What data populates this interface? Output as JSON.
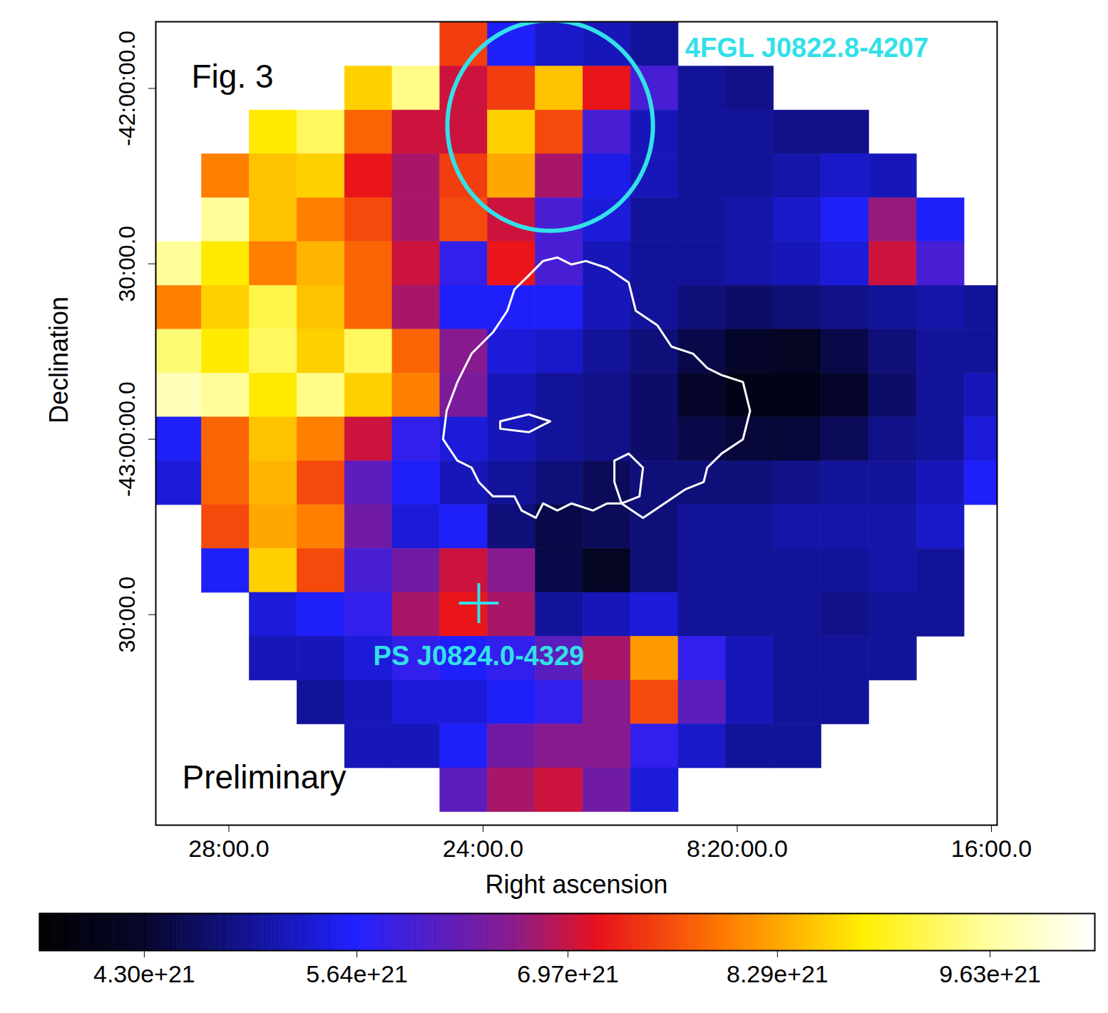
{
  "chart_data": {
    "type": "heatmap",
    "x_label": "Right ascension",
    "y_label": "Declination",
    "annotations": [
      "Fig. 3",
      "Preliminary"
    ],
    "xlim": [
      29.15,
      15.91
    ],
    "ylim": [
      -44.1,
      -41.81
    ],
    "xticks": [
      {
        "value": 28,
        "label": "28:00.0"
      },
      {
        "value": 24,
        "label": "24:00.0"
      },
      {
        "value": 20,
        "label": "8:20:00.0"
      },
      {
        "value": 16,
        "label": "16:00.0"
      }
    ],
    "yticks": [
      {
        "value": -42,
        "label": "-42:00:00.0"
      },
      {
        "value": -42.5,
        "label": "30:00.0"
      },
      {
        "value": -43,
        "label": "-43:00:00.0"
      },
      {
        "value": -43.5,
        "label": "30:00.0"
      }
    ],
    "x": [
      28.8,
      28.05,
      27.3,
      26.55,
      25.8,
      25.05,
      24.3,
      23.55,
      22.8,
      22.05,
      21.3,
      20.55,
      19.8,
      19.05,
      18.3,
      17.55,
      16.8,
      16.05
    ],
    "y": [
      -41.875,
      -42.0,
      -42.125,
      -42.25,
      -42.375,
      -42.5,
      -42.625,
      -42.75,
      -42.875,
      -43.0,
      -43.125,
      -43.25,
      -43.375,
      -43.5,
      -43.625,
      -43.75,
      -43.875,
      -44.0
    ],
    "values": [
      [
        null,
        null,
        null,
        null,
        null,
        null,
        7.5e+21,
        5.6e+21,
        5.3e+21,
        5.2e+21,
        5e+21,
        null,
        null,
        null,
        null,
        null,
        null,
        null
      ],
      [
        null,
        null,
        null,
        null,
        8.6e+21,
        9.5e+21,
        7e+21,
        7.5e+21,
        8.5e+21,
        7.2e+21,
        6e+21,
        5e+21,
        4.9e+21,
        null,
        null,
        null,
        null,
        null
      ],
      [
        null,
        null,
        8.8e+21,
        9.3e+21,
        7.8e+21,
        7e+21,
        7e+21,
        8.6e+21,
        7.6e+21,
        6e+21,
        5.2e+21,
        5e+21,
        5e+21,
        4.9e+21,
        4.9e+21,
        null,
        null,
        null
      ],
      [
        null,
        8e+21,
        8.5e+21,
        8.6e+21,
        7.2e+21,
        6.8e+21,
        7.5e+21,
        8.3e+21,
        6.8e+21,
        5.5e+21,
        5.2e+21,
        5e+21,
        5e+21,
        5.1e+21,
        5.3e+21,
        5.2e+21,
        null,
        null
      ],
      [
        null,
        9.6e+21,
        8.5e+21,
        8e+21,
        7.6e+21,
        6.8e+21,
        7.6e+21,
        7e+21,
        6e+21,
        5.4e+21,
        5e+21,
        5e+21,
        5.1e+21,
        5.3e+21,
        5.6e+21,
        6.7e+21,
        5.6e+21,
        null
      ],
      [
        9.6e+21,
        8.8e+21,
        8e+21,
        8.4e+21,
        7.8e+21,
        7e+21,
        5.8e+21,
        7.2e+21,
        6e+21,
        5.2e+21,
        5e+21,
        5e+21,
        5.1e+21,
        5.2e+21,
        5.4e+21,
        7e+21,
        6e+21,
        null
      ],
      [
        8e+21,
        8.6e+21,
        9.2e+21,
        8.5e+21,
        7.8e+21,
        6.8e+21,
        5.6e+21,
        5.6e+21,
        5.6e+21,
        5.2e+21,
        5e+21,
        4.8e+21,
        4.7e+21,
        4.8e+21,
        4.9e+21,
        5e+21,
        5.1e+21,
        5e+21
      ],
      [
        9.4e+21,
        8.8e+21,
        9.3e+21,
        8.6e+21,
        9.3e+21,
        7.8e+21,
        6.6e+21,
        5.4e+21,
        5.3e+21,
        5e+21,
        4.8e+21,
        4.5e+21,
        4.3e+21,
        4.2e+21,
        4.5e+21,
        4.8e+21,
        5e+21,
        5e+21
      ],
      [
        9.8e+21,
        9.6e+21,
        8.8e+21,
        9.5e+21,
        8.6e+21,
        8e+21,
        6.5e+21,
        5.2e+21,
        5e+21,
        4.9e+21,
        4.7e+21,
        4.3e+21,
        4e+21,
        4e+21,
        4.3e+21,
        4.7e+21,
        5e+21,
        5.2e+21
      ],
      [
        5.6e+21,
        7.8e+21,
        8.5e+21,
        8e+21,
        7e+21,
        5.8e+21,
        5.4e+21,
        5.2e+21,
        5e+21,
        4.9e+21,
        4.7e+21,
        4.5e+21,
        4.4e+21,
        4.4e+21,
        4.6e+21,
        4.9e+21,
        5e+21,
        5.4e+21
      ],
      [
        5.4e+21,
        7.8e+21,
        8.4e+21,
        7.6e+21,
        6.2e+21,
        5.6e+21,
        5.2e+21,
        5e+21,
        4.8e+21,
        4.6e+21,
        4.8e+21,
        4.8e+21,
        4.8e+21,
        4.9e+21,
        5e+21,
        5e+21,
        5.2e+21,
        5.6e+21
      ],
      [
        null,
        7.6e+21,
        8.3e+21,
        8e+21,
        6.4e+21,
        5.4e+21,
        5.6e+21,
        4.8e+21,
        4.5e+21,
        4.6e+21,
        4.8e+21,
        5e+21,
        5e+21,
        5.1e+21,
        5.1e+21,
        5.1e+21,
        5.3e+21,
        null
      ],
      [
        null,
        5.6e+21,
        8.6e+21,
        7.6e+21,
        6e+21,
        6.4e+21,
        7e+21,
        6.6e+21,
        4.5e+21,
        4.2e+21,
        4.8e+21,
        5e+21,
        5e+21,
        5e+21,
        5e+21,
        5.1e+21,
        5e+21,
        null
      ],
      [
        null,
        null,
        5.4e+21,
        5.6e+21,
        5.8e+21,
        6.8e+21,
        7.2e+21,
        6.8e+21,
        5e+21,
        5.2e+21,
        5.4e+21,
        5e+21,
        5e+21,
        5e+21,
        4.9e+21,
        5e+21,
        5e+21,
        null
      ],
      [
        null,
        null,
        5.2e+21,
        5.2e+21,
        5.4e+21,
        5.8e+21,
        5.6e+21,
        5.8e+21,
        6.2e+21,
        6.8e+21,
        8.2e+21,
        5.8e+21,
        5.2e+21,
        5e+21,
        5e+21,
        5e+21,
        null,
        null
      ],
      [
        null,
        null,
        null,
        5e+21,
        5.2e+21,
        5.4e+21,
        5.4e+21,
        5.6e+21,
        5.8e+21,
        6.6e+21,
        7.6e+21,
        6.2e+21,
        5.2e+21,
        5e+21,
        5e+21,
        null,
        null,
        null
      ],
      [
        null,
        null,
        null,
        null,
        5.2e+21,
        5.2e+21,
        5.6e+21,
        6.4e+21,
        6.6e+21,
        6.6e+21,
        5.8e+21,
        5.3e+21,
        5e+21,
        5e+21,
        null,
        null,
        null,
        null
      ],
      [
        null,
        null,
        null,
        null,
        null,
        null,
        6.2e+21,
        6.8e+21,
        7e+21,
        6.4e+21,
        5.4e+21,
        null,
        null,
        null,
        null,
        null,
        null,
        null
      ]
    ],
    "colorbar": {
      "range": [
        3.64e+21,
        1.029e+22
      ],
      "ticks": [
        {
          "value": 4.3e+21,
          "label": "4.30e+21"
        },
        {
          "value": 5.64e+21,
          "label": "5.64e+21"
        },
        {
          "value": 6.97e+21,
          "label": "6.97e+21"
        },
        {
          "value": 8.29e+21,
          "label": "8.29e+21"
        },
        {
          "value": 9.63e+21,
          "label": "9.63e+21"
        }
      ]
    },
    "contours": {
      "color": "#ffffff",
      "lines": [
        {
          "ra": [
            24.629,
            24.573,
            24.404,
            24.18,
            23.843,
            23.618,
            23.506,
            23.281,
            23.056,
            22.831,
            22.607,
            22.382,
            22.045,
            21.708,
            21.596,
            21.258,
            21.034,
            20.697,
            20.472,
            20.247,
            19.91,
            19.798,
            19.91,
            20.247,
            20.472,
            20.528,
            20.809,
            21.146,
            21.483,
            21.82,
            22.045,
            22.27,
            22.607,
            22.831,
            23.056,
            23.169,
            23.393,
            23.506,
            23.843,
            24.067,
            24.18,
            24.404
          ],
          "dec": [
            -43.0,
            -42.919,
            -42.837,
            -42.756,
            -42.695,
            -42.634,
            -42.573,
            -42.533,
            -42.492,
            -42.482,
            -42.502,
            -42.492,
            -42.512,
            -42.553,
            -42.634,
            -42.675,
            -42.736,
            -42.756,
            -42.797,
            -42.817,
            -42.837,
            -42.919,
            -43.0,
            -43.041,
            -43.081,
            -43.122,
            -43.142,
            -43.183,
            -43.224,
            -43.183,
            -43.183,
            -43.203,
            -43.183,
            -43.203,
            -43.183,
            -43.224,
            -43.203,
            -43.163,
            -43.163,
            -43.122,
            -43.081,
            -43.061
          ]
        },
        {
          "ra": [
            21.933,
            21.708,
            21.483,
            21.539,
            21.82,
            21.933
          ],
          "dec": [
            -43.061,
            -43.041,
            -43.081,
            -43.163,
            -43.183,
            -43.122
          ]
        },
        {
          "ra": [
            23.73,
            23.281,
            22.944,
            23.281,
            23.73
          ],
          "dec": [
            -42.949,
            -42.929,
            -42.949,
            -42.98,
            -42.97
          ]
        }
      ]
    },
    "regions": [
      {
        "name": "4FGL J0822.8-4207",
        "shape": "circle",
        "ra": 22.944,
        "dec": -42.106,
        "radius_deg": 0.3,
        "color": "#33e0e8"
      }
    ],
    "points": [
      {
        "name": "PS J0824.0-4329",
        "ra": 24.067,
        "dec": -43.467,
        "marker": "plus",
        "color": "#33e0e8"
      }
    ]
  }
}
